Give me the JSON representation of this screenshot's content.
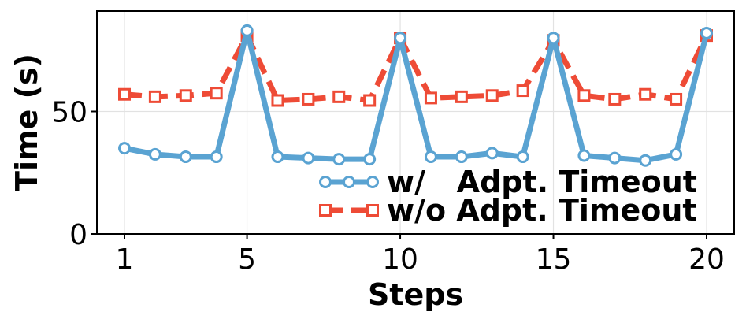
{
  "chart_data": {
    "type": "line",
    "xlabel": "Steps",
    "ylabel": "Time (s)",
    "xlim": [
      0.1,
      20.9
    ],
    "ylim": [
      0,
      91
    ],
    "x_ticks": [
      1,
      5,
      10,
      15,
      20
    ],
    "y_ticks": [
      0,
      50
    ],
    "grid": true,
    "legend_position": "lower-right",
    "x": [
      1,
      2,
      3,
      4,
      5,
      6,
      7,
      8,
      9,
      10,
      11,
      12,
      13,
      14,
      15,
      16,
      17,
      18,
      19,
      20
    ],
    "series": [
      {
        "name": "w/   Adpt. Timeout",
        "color": "#5aa3d2",
        "line_style": "solid",
        "marker": "circle",
        "values": [
          35,
          32.5,
          31.5,
          31.5,
          83,
          31.5,
          31,
          30.5,
          30.5,
          80,
          31.5,
          31.5,
          33,
          31.5,
          80,
          32,
          31,
          30,
          32.5,
          82
        ]
      },
      {
        "name": "w/o Adpt. Timeout",
        "color": "#ee4b36",
        "line_style": "dashed",
        "marker": "square",
        "values": [
          57,
          56,
          56.5,
          57.5,
          81,
          54.5,
          55,
          56,
          54.5,
          80,
          55.5,
          56,
          56.5,
          58.5,
          79,
          56.5,
          55,
          57,
          55,
          81
        ]
      }
    ]
  }
}
